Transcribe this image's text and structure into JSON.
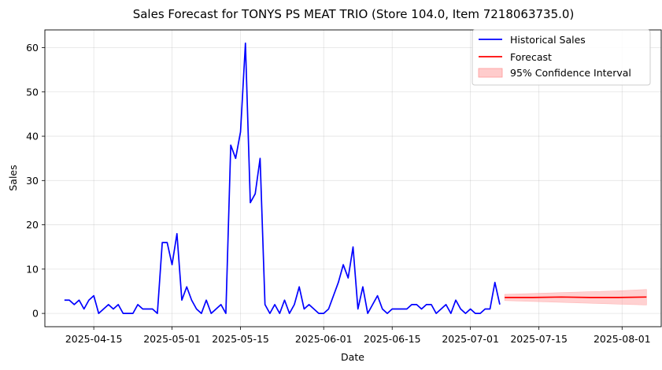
{
  "chart_data": {
    "type": "line",
    "title": "Sales Forecast for TONYS PS MEAT TRIO (Store 104.0, Item 7218063735.0)",
    "xlabel": "Date",
    "ylabel": "Sales",
    "xlim": [
      "2025-04-05",
      "2025-08-09"
    ],
    "ylim": [
      -3,
      64
    ],
    "x_ticks": [
      "2025-04-15",
      "2025-05-01",
      "2025-05-15",
      "2025-06-01",
      "2025-06-15",
      "2025-07-01",
      "2025-07-15",
      "2025-08-01"
    ],
    "y_ticks": [
      0,
      10,
      20,
      30,
      40,
      50,
      60
    ],
    "grid": true,
    "legend_position": "top-right",
    "colors": {
      "historical": "#0000ff",
      "forecast": "#ff0000",
      "ci_fill": "#ff9999"
    },
    "series": [
      {
        "name": "Historical Sales",
        "type": "line",
        "color": "#0000ff",
        "start_date": "2025-04-09",
        "values": [
          3,
          3,
          2,
          3,
          1,
          3,
          4,
          0,
          1,
          2,
          1,
          2,
          0,
          0,
          0,
          2,
          1,
          1,
          1,
          0,
          16,
          16,
          11,
          18,
          3,
          6,
          3,
          1,
          0,
          3,
          0,
          1,
          2,
          0,
          38,
          35,
          41,
          61,
          25,
          27,
          35,
          2,
          0,
          2,
          0,
          3,
          0,
          2,
          6,
          1,
          2,
          1,
          0,
          0,
          1,
          4,
          7,
          11,
          8,
          15,
          1,
          6,
          0,
          2,
          4,
          1,
          0,
          1,
          1,
          1,
          1,
          2,
          2,
          1,
          2,
          2,
          0,
          1,
          2,
          0,
          3,
          1,
          0,
          1,
          0,
          0,
          1,
          1,
          7,
          2
        ]
      },
      {
        "name": "Forecast",
        "type": "line",
        "color": "#ff0000",
        "start_date": "2025-07-08",
        "end_date": "2025-08-06",
        "values": [
          3.6,
          3.6,
          3.7,
          3.6,
          3.6,
          3.7
        ]
      },
      {
        "name": "95% Confidence Interval",
        "type": "band",
        "color": "#ff9999",
        "start_date": "2025-07-08",
        "end_date": "2025-08-06",
        "lower": [
          2.9,
          2.7,
          2.5,
          2.3,
          2.1,
          1.9
        ],
        "upper": [
          4.3,
          4.5,
          4.7,
          4.9,
          5.1,
          5.4
        ]
      }
    ]
  }
}
